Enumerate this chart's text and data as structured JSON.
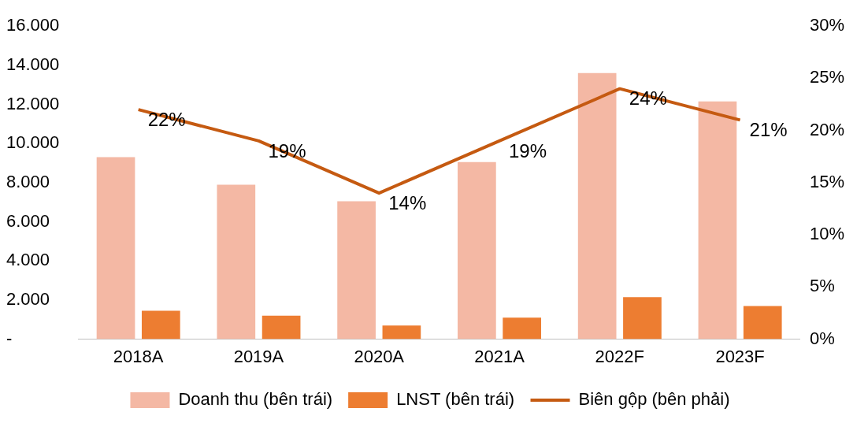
{
  "chart_data": {
    "type": "bar",
    "categories": [
      "2018A",
      "2019A",
      "2020A",
      "2021A",
      "2022F",
      "2023F"
    ],
    "series": [
      {
        "name": "Doanh thu (bên trái)",
        "color": "#f4b8a4",
        "values": [
          9300,
          7900,
          7050,
          9050,
          13600,
          12150
        ]
      },
      {
        "name": "LNST (bên trái)",
        "color": "#ed7d31",
        "values": [
          1450,
          1200,
          700,
          1100,
          2150,
          1700
        ]
      },
      {
        "name": "Biên gộp (bên phải)",
        "type": "line",
        "axis": "y2",
        "color": "#c55a11",
        "values": [
          22,
          19,
          14,
          19,
          24,
          21
        ],
        "value_labels": [
          "22%",
          "19%",
          "14%",
          "19%",
          "24%",
          "21%"
        ]
      }
    ],
    "ylim": [
      0,
      16000
    ],
    "yticks": [
      {
        "value": 0,
        "label": "-"
      },
      {
        "value": 2000,
        "label": "2.000"
      },
      {
        "value": 4000,
        "label": "4.000"
      },
      {
        "value": 6000,
        "label": "6.000"
      },
      {
        "value": 8000,
        "label": "8.000"
      },
      {
        "value": 10000,
        "label": "10.000"
      },
      {
        "value": 12000,
        "label": "12.000"
      },
      {
        "value": 14000,
        "label": "14.000"
      },
      {
        "value": 16000,
        "label": "16.000"
      }
    ],
    "y2lim": [
      0,
      30
    ],
    "y2ticks": [
      {
        "value": 0,
        "label": "0%"
      },
      {
        "value": 5,
        "label": "5%"
      },
      {
        "value": 10,
        "label": "10%"
      },
      {
        "value": 15,
        "label": "15%"
      },
      {
        "value": 20,
        "label": "20%"
      },
      {
        "value": 25,
        "label": "25%"
      },
      {
        "value": 30,
        "label": "30%"
      }
    ],
    "legend": "bottom",
    "grid": false
  }
}
